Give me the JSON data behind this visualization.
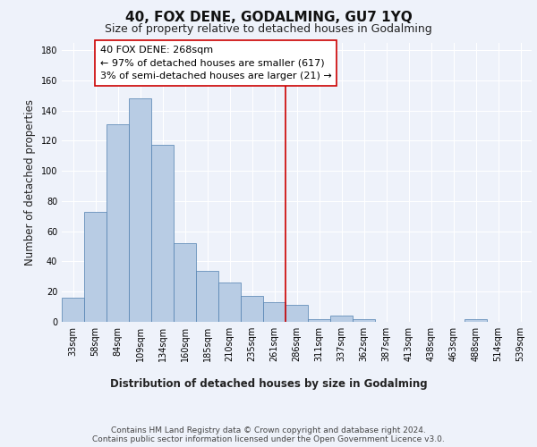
{
  "title": "40, FOX DENE, GODALMING, GU7 1YQ",
  "subtitle": "Size of property relative to detached houses in Godalming",
  "xlabel": "Distribution of detached houses by size in Godalming",
  "ylabel": "Number of detached properties",
  "categories": [
    "33sqm",
    "58sqm",
    "84sqm",
    "109sqm",
    "134sqm",
    "160sqm",
    "185sqm",
    "210sqm",
    "235sqm",
    "261sqm",
    "286sqm",
    "311sqm",
    "337sqm",
    "362sqm",
    "387sqm",
    "413sqm",
    "438sqm",
    "463sqm",
    "488sqm",
    "514sqm",
    "539sqm"
  ],
  "values": [
    16,
    73,
    131,
    148,
    117,
    52,
    34,
    26,
    17,
    13,
    11,
    2,
    4,
    2,
    0,
    0,
    0,
    0,
    2,
    0,
    0
  ],
  "bar_color": "#b8cce4",
  "bar_edge_color": "#5080b0",
  "vline_x": 9.5,
  "vline_color": "#cc0000",
  "annotation_text": "40 FOX DENE: 268sqm\n← 97% of detached houses are smaller (617)\n3% of semi-detached houses are larger (21) →",
  "annotation_box_color": "#ffffff",
  "annotation_box_edge_color": "#cc0000",
  "ylim": [
    0,
    185
  ],
  "yticks": [
    0,
    20,
    40,
    60,
    80,
    100,
    120,
    140,
    160,
    180
  ],
  "footer_text": "Contains HM Land Registry data © Crown copyright and database right 2024.\nContains public sector information licensed under the Open Government Licence v3.0.",
  "background_color": "#eef2fa",
  "grid_color": "#ffffff",
  "title_fontsize": 11,
  "subtitle_fontsize": 9,
  "axis_label_fontsize": 8.5,
  "tick_fontsize": 7,
  "annotation_fontsize": 8,
  "footer_fontsize": 6.5
}
